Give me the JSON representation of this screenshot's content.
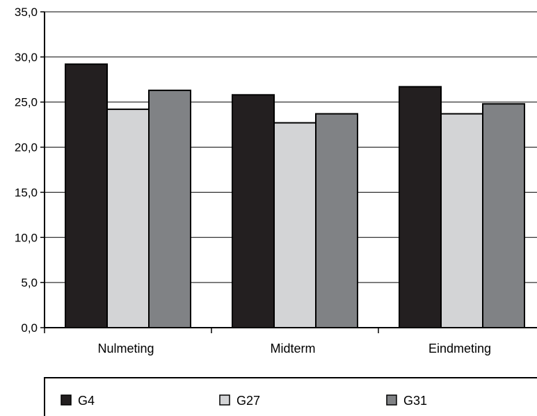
{
  "chart_data": {
    "type": "bar",
    "categories": [
      "Nulmeting",
      "Midterm",
      "Eindmeting"
    ],
    "series": [
      {
        "name": "G4",
        "color": "#231f20",
        "values": [
          29.2,
          25.8,
          26.7
        ]
      },
      {
        "name": "G27",
        "color": "#d3d4d6",
        "values": [
          24.2,
          22.7,
          23.7
        ]
      },
      {
        "name": "G31",
        "color": "#808285",
        "values": [
          26.3,
          23.7,
          24.8
        ]
      }
    ],
    "ylim": [
      0,
      35
    ],
    "yticks": [
      "0,0",
      "5,0",
      "10,0",
      "15,0",
      "20,0",
      "25,0",
      "30,0",
      "35,0"
    ],
    "grid": true,
    "legend_position": "bottom"
  }
}
